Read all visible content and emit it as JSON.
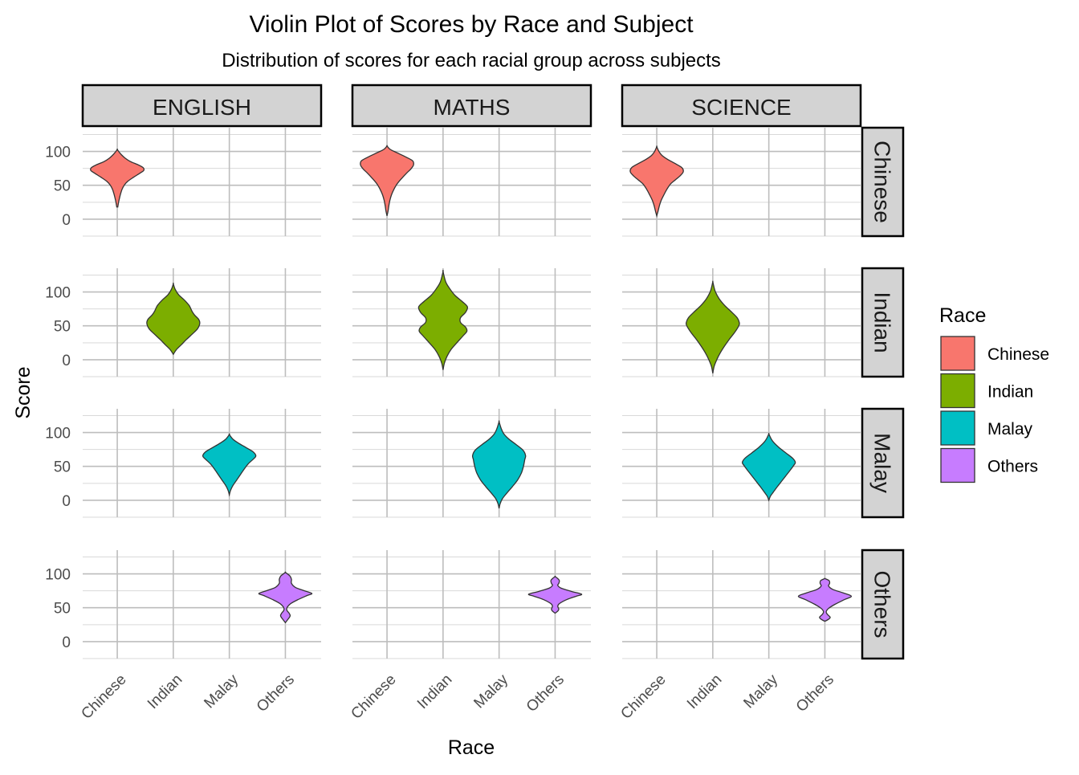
{
  "chart_data": {
    "type": "violin",
    "title": "Violin Plot of Scores by Race and Subject",
    "subtitle": "Distribution of scores for each racial group across subjects",
    "xlabel": "Race",
    "ylabel": "Score",
    "x_categories": [
      "Chinese",
      "Indian",
      "Malay",
      "Others"
    ],
    "column_facets": [
      "ENGLISH",
      "MATHS",
      "SCIENCE"
    ],
    "row_facets": [
      "Chinese",
      "Indian",
      "Malay",
      "Others"
    ],
    "y_ticks": [
      0,
      50,
      100
    ],
    "ylim": [
      -25,
      135
    ],
    "grid": true,
    "legend": {
      "title": "Race",
      "position": "right",
      "items": [
        {
          "label": "Chinese",
          "color": "#F8766D"
        },
        {
          "label": "Indian",
          "color": "#7CAE00"
        },
        {
          "label": "Malay",
          "color": "#00BFC4"
        },
        {
          "label": "Others",
          "color": "#C77CFF"
        }
      ]
    },
    "violins": [
      {
        "subject": "ENGLISH",
        "race": "Chinese",
        "ymin": 18,
        "ymax": 103,
        "density": [
          [
            18,
            0.02
          ],
          [
            25,
            0.05
          ],
          [
            32,
            0.09
          ],
          [
            38,
            0.13
          ],
          [
            44,
            0.18
          ],
          [
            50,
            0.26
          ],
          [
            56,
            0.4
          ],
          [
            62,
            0.62
          ],
          [
            68,
            0.86
          ],
          [
            72,
            1.0
          ],
          [
            76,
            0.98
          ],
          [
            80,
            0.8
          ],
          [
            85,
            0.5
          ],
          [
            90,
            0.3
          ],
          [
            95,
            0.16
          ],
          [
            100,
            0.05
          ],
          [
            103,
            0
          ]
        ]
      },
      {
        "subject": "MATHS",
        "race": "Chinese",
        "ymin": 5,
        "ymax": 108,
        "density": [
          [
            5,
            0
          ],
          [
            12,
            0.04
          ],
          [
            20,
            0.07
          ],
          [
            28,
            0.11
          ],
          [
            36,
            0.17
          ],
          [
            44,
            0.26
          ],
          [
            52,
            0.38
          ],
          [
            60,
            0.55
          ],
          [
            68,
            0.74
          ],
          [
            74,
            0.9
          ],
          [
            80,
            1.0
          ],
          [
            86,
            0.97
          ],
          [
            92,
            0.7
          ],
          [
            98,
            0.38
          ],
          [
            103,
            0.12
          ],
          [
            108,
            0
          ]
        ]
      },
      {
        "subject": "SCIENCE",
        "race": "Chinese",
        "ymin": 5,
        "ymax": 107,
        "density": [
          [
            5,
            0
          ],
          [
            12,
            0.05
          ],
          [
            20,
            0.1
          ],
          [
            28,
            0.17
          ],
          [
            36,
            0.27
          ],
          [
            44,
            0.38
          ],
          [
            52,
            0.52
          ],
          [
            58,
            0.7
          ],
          [
            64,
            0.88
          ],
          [
            70,
            1.0
          ],
          [
            76,
            0.95
          ],
          [
            82,
            0.7
          ],
          [
            88,
            0.42
          ],
          [
            94,
            0.2
          ],
          [
            100,
            0.08
          ],
          [
            107,
            0
          ]
        ]
      },
      {
        "subject": "ENGLISH",
        "race": "Indian",
        "ymin": 8,
        "ymax": 112,
        "density": [
          [
            8,
            0
          ],
          [
            15,
            0.12
          ],
          [
            22,
            0.3
          ],
          [
            30,
            0.5
          ],
          [
            38,
            0.72
          ],
          [
            46,
            0.92
          ],
          [
            54,
            1.0
          ],
          [
            60,
            0.95
          ],
          [
            66,
            0.8
          ],
          [
            72,
            0.7
          ],
          [
            80,
            0.6
          ],
          [
            88,
            0.42
          ],
          [
            96,
            0.2
          ],
          [
            104,
            0.07
          ],
          [
            112,
            0
          ]
        ]
      },
      {
        "subject": "MATHS",
        "race": "Indian",
        "ymin": -15,
        "ymax": 130,
        "density": [
          [
            -15,
            0
          ],
          [
            -5,
            0.05
          ],
          [
            5,
            0.15
          ],
          [
            15,
            0.3
          ],
          [
            25,
            0.52
          ],
          [
            35,
            0.75
          ],
          [
            42,
            0.9
          ],
          [
            48,
            0.85
          ],
          [
            55,
            0.66
          ],
          [
            62,
            0.66
          ],
          [
            70,
            0.85
          ],
          [
            78,
            0.92
          ],
          [
            86,
            0.72
          ],
          [
            95,
            0.45
          ],
          [
            105,
            0.25
          ],
          [
            115,
            0.1
          ],
          [
            130,
            0
          ]
        ]
      },
      {
        "subject": "SCIENCE",
        "race": "Indian",
        "ymin": -20,
        "ymax": 115,
        "density": [
          [
            -20,
            0
          ],
          [
            -10,
            0.05
          ],
          [
            0,
            0.15
          ],
          [
            10,
            0.28
          ],
          [
            20,
            0.44
          ],
          [
            30,
            0.62
          ],
          [
            40,
            0.82
          ],
          [
            50,
            0.98
          ],
          [
            55,
            1.0
          ],
          [
            62,
            0.92
          ],
          [
            70,
            0.72
          ],
          [
            80,
            0.45
          ],
          [
            90,
            0.24
          ],
          [
            100,
            0.1
          ],
          [
            108,
            0.04
          ],
          [
            115,
            0
          ]
        ]
      },
      {
        "subject": "ENGLISH",
        "race": "Malay",
        "ymin": 8,
        "ymax": 97,
        "density": [
          [
            8,
            0
          ],
          [
            15,
            0.05
          ],
          [
            22,
            0.14
          ],
          [
            30,
            0.28
          ],
          [
            38,
            0.42
          ],
          [
            46,
            0.56
          ],
          [
            54,
            0.72
          ],
          [
            62,
            0.94
          ],
          [
            66,
            1.0
          ],
          [
            72,
            0.88
          ],
          [
            78,
            0.62
          ],
          [
            84,
            0.36
          ],
          [
            90,
            0.14
          ],
          [
            97,
            0
          ]
        ]
      },
      {
        "subject": "MATHS",
        "race": "Malay",
        "ymin": -12,
        "ymax": 116,
        "density": [
          [
            -12,
            0
          ],
          [
            -5,
            0.04
          ],
          [
            2,
            0.12
          ],
          [
            10,
            0.28
          ],
          [
            20,
            0.5
          ],
          [
            30,
            0.7
          ],
          [
            40,
            0.84
          ],
          [
            50,
            0.92
          ],
          [
            60,
            0.97
          ],
          [
            66,
            1.0
          ],
          [
            74,
            0.9
          ],
          [
            82,
            0.65
          ],
          [
            90,
            0.38
          ],
          [
            98,
            0.18
          ],
          [
            106,
            0.08
          ],
          [
            116,
            0
          ]
        ]
      },
      {
        "subject": "SCIENCE",
        "race": "Malay",
        "ymin": 0,
        "ymax": 98,
        "density": [
          [
            0,
            0
          ],
          [
            6,
            0.06
          ],
          [
            12,
            0.17
          ],
          [
            20,
            0.32
          ],
          [
            28,
            0.48
          ],
          [
            36,
            0.64
          ],
          [
            44,
            0.8
          ],
          [
            52,
            0.95
          ],
          [
            56,
            1.0
          ],
          [
            62,
            0.9
          ],
          [
            70,
            0.64
          ],
          [
            78,
            0.38
          ],
          [
            86,
            0.17
          ],
          [
            92,
            0.07
          ],
          [
            98,
            0
          ]
        ]
      },
      {
        "subject": "ENGLISH",
        "race": "Others",
        "ymin": 28,
        "ymax": 102,
        "density": [
          [
            28,
            0
          ],
          [
            33,
            0.1
          ],
          [
            38,
            0.18
          ],
          [
            42,
            0.14
          ],
          [
            46,
            0.06
          ],
          [
            50,
            0.06
          ],
          [
            56,
            0.2
          ],
          [
            62,
            0.48
          ],
          [
            68,
            0.82
          ],
          [
            71,
            1.0
          ],
          [
            75,
            0.72
          ],
          [
            80,
            0.38
          ],
          [
            86,
            0.23
          ],
          [
            92,
            0.23
          ],
          [
            97,
            0.17
          ],
          [
            102,
            0
          ]
        ]
      },
      {
        "subject": "MATHS",
        "race": "Others",
        "ymin": 42,
        "ymax": 96,
        "density": [
          [
            42,
            0
          ],
          [
            45,
            0.1
          ],
          [
            48,
            0.14
          ],
          [
            52,
            0.1
          ],
          [
            56,
            0.16
          ],
          [
            62,
            0.44
          ],
          [
            67,
            0.8
          ],
          [
            70,
            1.0
          ],
          [
            74,
            0.62
          ],
          [
            79,
            0.22
          ],
          [
            83,
            0.1
          ],
          [
            86,
            0.14
          ],
          [
            90,
            0.16
          ],
          [
            93,
            0.1
          ],
          [
            96,
            0
          ]
        ]
      },
      {
        "subject": "SCIENCE",
        "race": "Others",
        "ymin": 30,
        "ymax": 93,
        "density": [
          [
            30,
            0
          ],
          [
            33,
            0.14
          ],
          [
            36,
            0.2
          ],
          [
            40,
            0.1
          ],
          [
            44,
            0.05
          ],
          [
            49,
            0.14
          ],
          [
            55,
            0.38
          ],
          [
            62,
            0.74
          ],
          [
            67,
            1.0
          ],
          [
            72,
            0.68
          ],
          [
            77,
            0.3
          ],
          [
            82,
            0.14
          ],
          [
            86,
            0.18
          ],
          [
            90,
            0.16
          ],
          [
            93,
            0
          ]
        ]
      }
    ]
  }
}
